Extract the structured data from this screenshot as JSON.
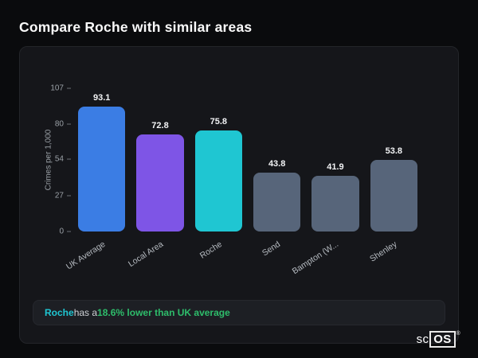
{
  "page": {
    "title": "Compare Roche with similar areas"
  },
  "chart_data": {
    "type": "bar",
    "ylabel": "Crimes per 1,000",
    "ylim": [
      0,
      107
    ],
    "yticks": [
      0,
      27,
      54,
      80,
      107
    ],
    "categories": [
      "UK Average",
      "Local Area",
      "Roche",
      "Send",
      "Bampton (W...",
      "Shenley"
    ],
    "values": [
      93.1,
      72.8,
      75.8,
      43.8,
      41.9,
      53.8
    ],
    "bar_colors": [
      "#3b7de4",
      "#7e55e6",
      "#1fc6d2",
      "#57657a",
      "#57657a",
      "#57657a"
    ],
    "grid": false,
    "legend": false
  },
  "footer_note": {
    "area_label": "Roche",
    "connector": " has a ",
    "highlight": "18.6% lower than UK average",
    "area_color": "#1fc6d2",
    "highlight_color": "#2ebd6b"
  },
  "logo": {
    "prefix": "sc",
    "boxed": "OS",
    "reg": "®"
  }
}
